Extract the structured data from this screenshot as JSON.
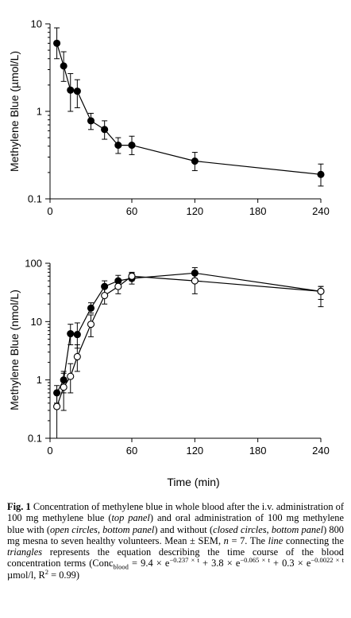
{
  "chart_data": [
    {
      "type": "scatter",
      "panel": "top",
      "ylabel": "Methylene Blue (µmol/L)",
      "xlabel": "",
      "y_scale": "log",
      "ylim": [
        0.1,
        10
      ],
      "xlim": [
        0,
        240
      ],
      "x_scale_note": "axis is piecewise: 0–60 min expanded, 60–240 min compressed",
      "x_ticks": [
        0,
        60,
        120,
        180,
        240
      ],
      "x_tick_labels": [
        "0",
        "60",
        "120",
        "180",
        "240"
      ],
      "y_ticks": [
        0.1,
        1,
        10
      ],
      "y_tick_labels": [
        "0.1",
        "1",
        "10"
      ],
      "series": [
        {
          "marker": "filled-circle",
          "line": true,
          "points": [
            {
              "x": 5,
              "y": 6.0,
              "lo": 4.0,
              "hi": 9.0
            },
            {
              "x": 10,
              "y": 3.3,
              "lo": 2.2,
              "hi": 4.8
            },
            {
              "x": 15,
              "y": 1.75,
              "lo": 1.0,
              "hi": 2.7
            },
            {
              "x": 20,
              "y": 1.7,
              "lo": 1.1,
              "hi": 2.3
            },
            {
              "x": 30,
              "y": 0.78,
              "lo": 0.62,
              "hi": 0.95
            },
            {
              "x": 40,
              "y": 0.62,
              "lo": 0.48,
              "hi": 0.78
            },
            {
              "x": 50,
              "y": 0.41,
              "lo": 0.33,
              "hi": 0.5
            },
            {
              "x": 60,
              "y": 0.41,
              "lo": 0.32,
              "hi": 0.52
            },
            {
              "x": 120,
              "y": 0.27,
              "lo": 0.21,
              "hi": 0.34
            },
            {
              "x": 240,
              "y": 0.19,
              "lo": 0.14,
              "hi": 0.25
            }
          ]
        }
      ]
    },
    {
      "type": "scatter",
      "panel": "bottom",
      "ylabel": "Methylene Blue (nmol/L)",
      "xlabel": "Time (min)",
      "y_scale": "log",
      "ylim": [
        0.1,
        100
      ],
      "xlim": [
        0,
        240
      ],
      "x_ticks": [
        0,
        60,
        120,
        180,
        240
      ],
      "x_tick_labels": [
        "0",
        "60",
        "120",
        "180",
        "240"
      ],
      "y_ticks": [
        0.1,
        1,
        10,
        100
      ],
      "y_tick_labels": [
        "0.1",
        "1",
        "10",
        "100"
      ],
      "series": [
        {
          "marker": "filled-circle",
          "line": true,
          "points": [
            {
              "x": 5,
              "y": 0.6,
              "lo": 0.4,
              "hi": 0.8
            },
            {
              "x": 10,
              "y": 1.0,
              "lo": 0.6,
              "hi": 1.4
            },
            {
              "x": 15,
              "y": 6.2,
              "lo": 4.0,
              "hi": 9.0
            },
            {
              "x": 20,
              "y": 6.0,
              "lo": 3.5,
              "hi": 9.5
            },
            {
              "x": 30,
              "y": 17,
              "lo": 14,
              "hi": 21
            },
            {
              "x": 40,
              "y": 40,
              "lo": 30,
              "hi": 50
            },
            {
              "x": 50,
              "y": 50,
              "lo": 38,
              "hi": 62
            },
            {
              "x": 60,
              "y": 55,
              "lo": 44,
              "hi": 68
            },
            {
              "x": 120,
              "y": 68,
              "lo": 55,
              "hi": 84
            },
            {
              "x": 240,
              "y": 33,
              "lo": 24,
              "hi": 40
            }
          ]
        },
        {
          "marker": "open-circle",
          "line": true,
          "points": [
            {
              "x": 5,
              "y": 0.35,
              "lo": 0.1,
              "hi": 0.6
            },
            {
              "x": 10,
              "y": 0.75,
              "lo": 0.3,
              "hi": 1.3
            },
            {
              "x": 15,
              "y": 1.15,
              "lo": 0.6,
              "hi": 1.9
            },
            {
              "x": 20,
              "y": 2.5,
              "lo": 1.4,
              "hi": 4.0
            },
            {
              "x": 30,
              "y": 9.0,
              "lo": 5.5,
              "hi": 13
            },
            {
              "x": 40,
              "y": 28,
              "lo": 20,
              "hi": 38
            },
            {
              "x": 50,
              "y": 40,
              "lo": 30,
              "hi": 52
            },
            {
              "x": 60,
              "y": 60,
              "lo": 50,
              "hi": 70
            },
            {
              "x": 120,
              "y": 50,
              "lo": 30,
              "hi": 70
            },
            {
              "x": 240,
              "y": 33,
              "lo": 18,
              "hi": 40
            }
          ]
        }
      ]
    }
  ],
  "caption": {
    "fig_number": "Fig. 1",
    "p1": " Concentration of methylene blue in whole blood after the i.v. administration of 100 mg methylene blue (",
    "top_panel": "top panel",
    "p2": ") and oral administration of 100 mg methylene blue with (",
    "open_circles_bottom_panel": "open circles, bottom panel",
    "p3": ") and without (",
    "closed_circles_bottom_panel": "closed circles, bottom panel",
    "p4": ") 800 mg mesna to seven healthy volunteers. Mean ± SEM, ",
    "n": "n",
    "p5": " = 7. The ",
    "line": "line",
    "p6": " connecting the ",
    "triangles": "triangles",
    "p7": " represents the equation describing the time course of the blood concentration terms (Conc",
    "sub_blood": "blood",
    "p8": " = 9.4 × e",
    "exp1": "−0.237 × t",
    "p9": " + 3.8 × e",
    "exp2": "−0.065 × t",
    "p10": " + 0.3 × e",
    "exp3": "−0.0022 × t",
    "p11": " µmol/l, R",
    "sup2": "2",
    "p12": " = 0.99)"
  }
}
